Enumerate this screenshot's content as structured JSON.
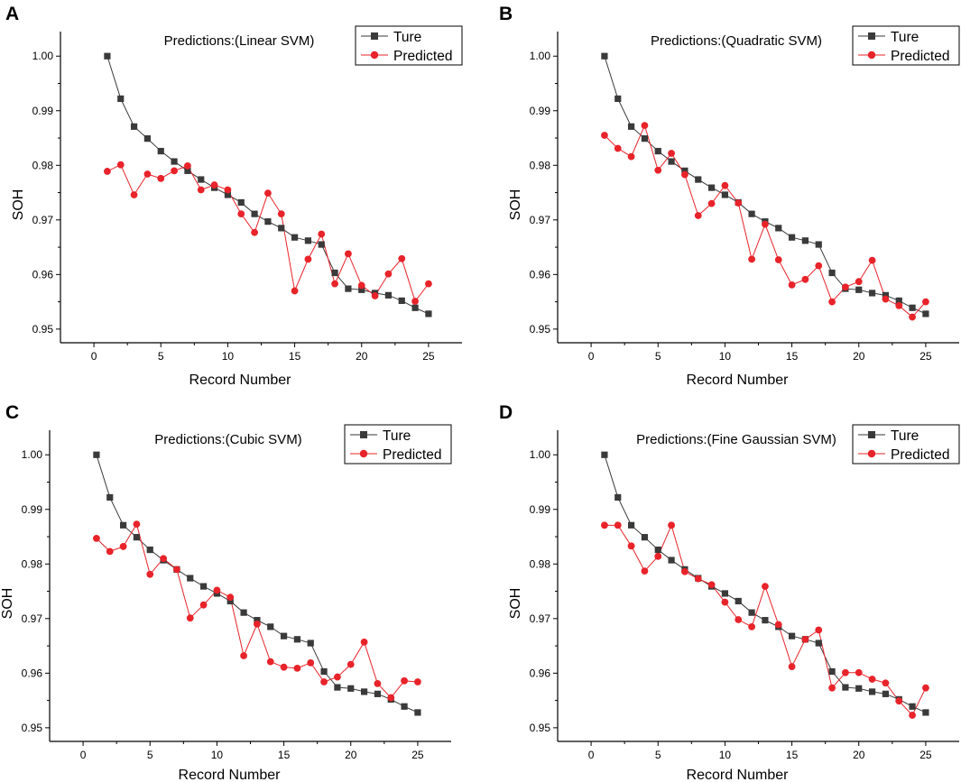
{
  "colors": {
    "true_series": "#3a3a3a",
    "predicted_series": "#e8232a",
    "axis": "#000000"
  },
  "chart_data": [
    {
      "type": "line",
      "panel": "A",
      "title": "Predictions:(Linear SVM)",
      "xlabel": "Record Number",
      "ylabel": "SOH",
      "xlim": [
        -2.5,
        27.5
      ],
      "ylim": [
        0.9475,
        1.0045
      ],
      "xticks": [
        0,
        5,
        10,
        15,
        20,
        25
      ],
      "yticks": [
        0.95,
        0.96,
        0.97,
        0.98,
        0.99,
        1.0
      ],
      "ytick_labels": [
        "0.95",
        "0.96",
        "0.97",
        "0.98",
        "0.99",
        "1.00"
      ],
      "legend_position": "top-right",
      "x": [
        1,
        2,
        3,
        4,
        5,
        6,
        7,
        8,
        9,
        10,
        11,
        12,
        13,
        14,
        15,
        16,
        17,
        18,
        19,
        20,
        21,
        22,
        23,
        24,
        25
      ],
      "series": [
        {
          "name": "Ture",
          "values": [
            1.0,
            0.9922,
            0.9871,
            0.9849,
            0.9826,
            0.9807,
            0.979,
            0.9774,
            0.9759,
            0.9746,
            0.9732,
            0.9711,
            0.9697,
            0.9685,
            0.9668,
            0.9662,
            0.9655,
            0.9603,
            0.9574,
            0.9572,
            0.9566,
            0.9562,
            0.9552,
            0.9539,
            0.9528
          ]
        },
        {
          "name": "Predicted",
          "values": [
            0.9789,
            0.9801,
            0.9746,
            0.9784,
            0.9776,
            0.979,
            0.9799,
            0.9755,
            0.9764,
            0.9755,
            0.9711,
            0.9677,
            0.9749,
            0.9711,
            0.957,
            0.9628,
            0.9674,
            0.9583,
            0.9638,
            0.958,
            0.9561,
            0.9601,
            0.9629,
            0.9551,
            0.9583
          ]
        }
      ]
    },
    {
      "type": "line",
      "panel": "B",
      "title": "Predictions:(Quadratic SVM)",
      "xlabel": "Record Number",
      "ylabel": "SOH",
      "xlim": [
        -2.5,
        27.5
      ],
      "ylim": [
        0.9475,
        1.0045
      ],
      "xticks": [
        0,
        5,
        10,
        15,
        20,
        25
      ],
      "yticks": [
        0.95,
        0.96,
        0.97,
        0.98,
        0.99,
        1.0
      ],
      "ytick_labels": [
        "0.95",
        "0.96",
        "0.97",
        "0.98",
        "0.99",
        "1.00"
      ],
      "legend_position": "top-right",
      "x": [
        1,
        2,
        3,
        4,
        5,
        6,
        7,
        8,
        9,
        10,
        11,
        12,
        13,
        14,
        15,
        16,
        17,
        18,
        19,
        20,
        21,
        22,
        23,
        24,
        25
      ],
      "series": [
        {
          "name": "Ture",
          "values": [
            1.0,
            0.9922,
            0.9871,
            0.9849,
            0.9826,
            0.9807,
            0.979,
            0.9774,
            0.9759,
            0.9746,
            0.9732,
            0.9711,
            0.9697,
            0.9685,
            0.9668,
            0.9662,
            0.9655,
            0.9603,
            0.9574,
            0.9572,
            0.9566,
            0.9562,
            0.9552,
            0.9539,
            0.9528
          ]
        },
        {
          "name": "Predicted",
          "values": [
            0.9855,
            0.9831,
            0.9816,
            0.9873,
            0.9791,
            0.9822,
            0.9783,
            0.9708,
            0.973,
            0.9763,
            0.9731,
            0.9628,
            0.9692,
            0.9627,
            0.9581,
            0.9591,
            0.9616,
            0.955,
            0.9577,
            0.9587,
            0.9626,
            0.9555,
            0.9543,
            0.9522,
            0.955
          ]
        }
      ]
    },
    {
      "type": "line",
      "panel": "C",
      "title": "Predictions:(Cubic SVM)",
      "xlabel": "Record Number",
      "ylabel": "SOH",
      "xlim": [
        -2.5,
        27.5
      ],
      "ylim": [
        0.9475,
        1.0045
      ],
      "xticks": [
        0,
        5,
        10,
        15,
        20,
        25
      ],
      "yticks": [
        0.95,
        0.96,
        0.97,
        0.98,
        0.99,
        1.0
      ],
      "ytick_labels": [
        "0.95",
        "0.96",
        "0.97",
        "0.98",
        "0.99",
        "1.00"
      ],
      "legend_position": "top-right",
      "x": [
        1,
        2,
        3,
        4,
        5,
        6,
        7,
        8,
        9,
        10,
        11,
        12,
        13,
        14,
        15,
        16,
        17,
        18,
        19,
        20,
        21,
        22,
        23,
        24,
        25
      ],
      "series": [
        {
          "name": "Ture",
          "values": [
            1.0,
            0.9922,
            0.9871,
            0.9849,
            0.9826,
            0.9807,
            0.979,
            0.9774,
            0.9759,
            0.9746,
            0.9732,
            0.9711,
            0.9697,
            0.9685,
            0.9668,
            0.9662,
            0.9655,
            0.9603,
            0.9574,
            0.9572,
            0.9566,
            0.9562,
            0.9552,
            0.9539,
            0.9528
          ]
        },
        {
          "name": "Predicted",
          "values": [
            0.9847,
            0.9823,
            0.9832,
            0.9873,
            0.9781,
            0.981,
            0.979,
            0.9701,
            0.9725,
            0.9752,
            0.9739,
            0.9632,
            0.969,
            0.9621,
            0.9611,
            0.9609,
            0.9619,
            0.9584,
            0.9593,
            0.9616,
            0.9657,
            0.9581,
            0.9555,
            0.9586,
            0.9584
          ]
        }
      ]
    },
    {
      "type": "line",
      "panel": "D",
      "title": "Predictions:(Fine Gaussian SVM)",
      "xlabel": "Record Number",
      "ylabel": "SOH",
      "xlim": [
        -2.5,
        27.5
      ],
      "ylim": [
        0.9475,
        1.0045
      ],
      "xticks": [
        0,
        5,
        10,
        15,
        20,
        25
      ],
      "yticks": [
        0.95,
        0.96,
        0.97,
        0.98,
        0.99,
        1.0
      ],
      "ytick_labels": [
        "0.95",
        "0.96",
        "0.97",
        "0.98",
        "0.99",
        "1.00"
      ],
      "legend_position": "top-right",
      "x": [
        1,
        2,
        3,
        4,
        5,
        6,
        7,
        8,
        9,
        10,
        11,
        12,
        13,
        14,
        15,
        16,
        17,
        18,
        19,
        20,
        21,
        22,
        23,
        24,
        25
      ],
      "series": [
        {
          "name": "Ture",
          "values": [
            1.0,
            0.9922,
            0.9871,
            0.9849,
            0.9826,
            0.9807,
            0.979,
            0.9774,
            0.9759,
            0.9746,
            0.9732,
            0.9711,
            0.9697,
            0.9685,
            0.9668,
            0.9662,
            0.9655,
            0.9603,
            0.9574,
            0.9572,
            0.9566,
            0.9562,
            0.9552,
            0.9539,
            0.9528
          ]
        },
        {
          "name": "Predicted",
          "values": [
            0.9871,
            0.9871,
            0.9833,
            0.9787,
            0.9814,
            0.9871,
            0.9786,
            0.9773,
            0.9762,
            0.973,
            0.9698,
            0.9685,
            0.9759,
            0.9689,
            0.9612,
            0.9662,
            0.9679,
            0.9573,
            0.9601,
            0.9601,
            0.9589,
            0.9582,
            0.9549,
            0.9523,
            0.9573
          ]
        }
      ]
    }
  ]
}
